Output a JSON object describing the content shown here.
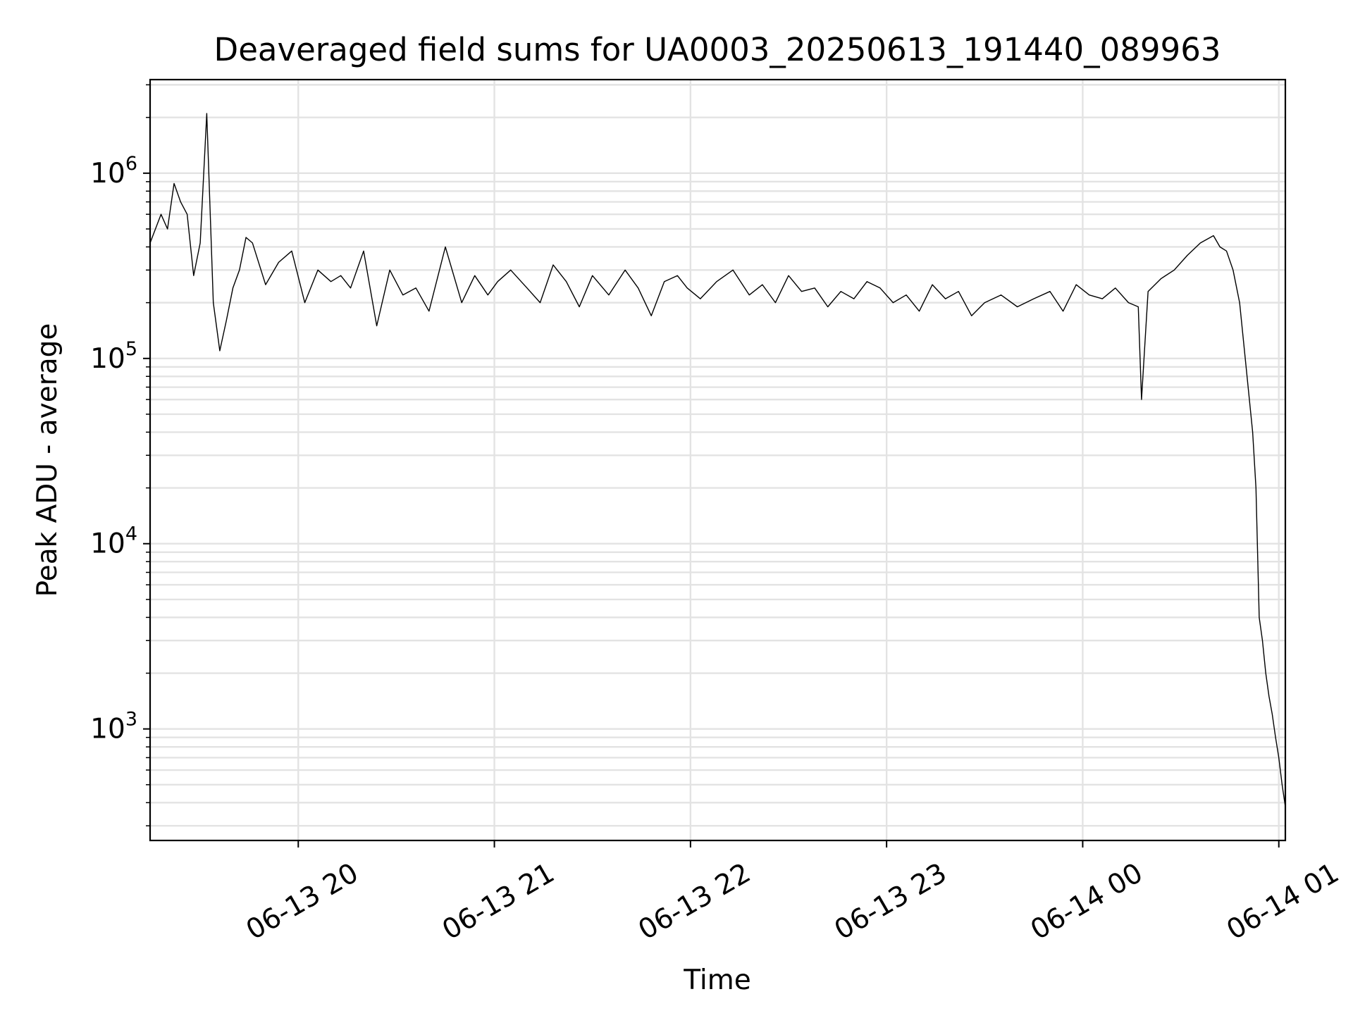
{
  "chart_data": {
    "type": "line",
    "title": "Deaveraged field sums for UA0003_20250613_191440_089963",
    "xlabel": "Time",
    "ylabel": "Peak ADU - average",
    "y_scale": "log",
    "ylim": [
      250,
      3200000
    ],
    "xlim": [
      "2025-06-13 19:14:40",
      "2025-06-14 01:02:00"
    ],
    "grid": "on (major and minor)",
    "line_color": "#000000",
    "x_ticks": [
      {
        "label": "06-13 20",
        "value": "2025-06-13 20:00"
      },
      {
        "label": "06-13 21",
        "value": "2025-06-13 21:00"
      },
      {
        "label": "06-13 22",
        "value": "2025-06-13 22:00"
      },
      {
        "label": "06-13 23",
        "value": "2025-06-13 23:00"
      },
      {
        "label": "06-14 00",
        "value": "2025-06-14 00:00"
      },
      {
        "label": "06-14 01",
        "value": "2025-06-14 01:00"
      }
    ],
    "y_ticks": [
      {
        "base": "10",
        "exp": "3",
        "value": 1000
      },
      {
        "base": "10",
        "exp": "4",
        "value": 10000
      },
      {
        "base": "10",
        "exp": "5",
        "value": 100000
      },
      {
        "base": "10",
        "exp": "6",
        "value": 1000000
      }
    ],
    "series": [
      {
        "x": [
          "2025-06-13 19:14:40",
          "2025-06-13 19:18",
          "2025-06-13 19:20",
          "2025-06-13 19:22",
          "2025-06-13 19:24",
          "2025-06-13 19:26",
          "2025-06-13 19:28",
          "2025-06-13 19:30",
          "2025-06-13 19:32",
          "2025-06-13 19:34",
          "2025-06-13 19:36",
          "2025-06-13 19:38",
          "2025-06-13 19:40",
          "2025-06-13 19:42",
          "2025-06-13 19:44",
          "2025-06-13 19:46",
          "2025-06-13 19:50",
          "2025-06-13 19:54",
          "2025-06-13 19:58",
          "2025-06-13 20:02",
          "2025-06-13 20:06",
          "2025-06-13 20:10",
          "2025-06-13 20:13",
          "2025-06-13 20:16",
          "2025-06-13 20:20",
          "2025-06-13 20:24",
          "2025-06-13 20:28",
          "2025-06-13 20:32",
          "2025-06-13 20:36",
          "2025-06-13 20:40",
          "2025-06-13 20:45",
          "2025-06-13 20:50",
          "2025-06-13 20:54",
          "2025-06-13 20:58",
          "2025-06-13 21:01",
          "2025-06-13 21:05",
          "2025-06-13 21:10",
          "2025-06-13 21:14",
          "2025-06-13 21:18",
          "2025-06-13 21:22",
          "2025-06-13 21:26",
          "2025-06-13 21:30",
          "2025-06-13 21:35",
          "2025-06-13 21:40",
          "2025-06-13 21:44",
          "2025-06-13 21:48",
          "2025-06-13 21:52",
          "2025-06-13 21:56",
          "2025-06-13 21:59",
          "2025-06-13 22:03",
          "2025-06-13 22:08",
          "2025-06-13 22:13",
          "2025-06-13 22:18",
          "2025-06-13 22:22",
          "2025-06-13 22:26",
          "2025-06-13 22:30",
          "2025-06-13 22:34",
          "2025-06-13 22:38",
          "2025-06-13 22:42",
          "2025-06-13 22:46",
          "2025-06-13 22:50",
          "2025-06-13 22:54",
          "2025-06-13 22:58",
          "2025-06-13 23:02",
          "2025-06-13 23:06",
          "2025-06-13 23:10",
          "2025-06-13 23:14",
          "2025-06-13 23:18",
          "2025-06-13 23:22",
          "2025-06-13 23:26",
          "2025-06-13 23:30",
          "2025-06-13 23:35",
          "2025-06-13 23:40",
          "2025-06-13 23:45",
          "2025-06-13 23:50",
          "2025-06-13 23:54",
          "2025-06-13 23:58",
          "2025-06-14 00:02",
          "2025-06-14 00:06",
          "2025-06-14 00:10",
          "2025-06-14 00:14",
          "2025-06-14 00:17",
          "2025-06-14 00:18",
          "2025-06-14 00:20",
          "2025-06-14 00:24",
          "2025-06-14 00:28",
          "2025-06-14 00:32",
          "2025-06-14 00:36",
          "2025-06-14 00:40",
          "2025-06-14 00:42",
          "2025-06-14 00:44",
          "2025-06-14 00:46",
          "2025-06-14 00:48",
          "2025-06-14 00:50",
          "2025-06-14 00:52",
          "2025-06-14 00:53",
          "2025-06-14 00:54",
          "2025-06-14 00:55",
          "2025-06-14 00:56",
          "2025-06-14 00:57",
          "2025-06-14 00:58",
          "2025-06-14 00:59",
          "2025-06-14 01:00",
          "2025-06-14 01:01",
          "2025-06-14 01:02"
        ],
        "y": [
          420000,
          600000,
          500000,
          880000,
          700000,
          600000,
          280000,
          420000,
          2100000,
          200000,
          110000,
          160000,
          240000,
          300000,
          450000,
          420000,
          250000,
          330000,
          380000,
          200000,
          300000,
          260000,
          280000,
          240000,
          380000,
          150000,
          300000,
          220000,
          240000,
          180000,
          400000,
          200000,
          280000,
          220000,
          260000,
          300000,
          240000,
          200000,
          320000,
          260000,
          190000,
          280000,
          220000,
          300000,
          240000,
          170000,
          260000,
          280000,
          240000,
          210000,
          260000,
          300000,
          220000,
          250000,
          200000,
          280000,
          230000,
          240000,
          190000,
          230000,
          210000,
          260000,
          240000,
          200000,
          220000,
          180000,
          250000,
          210000,
          230000,
          170000,
          200000,
          220000,
          190000,
          210000,
          230000,
          180000,
          250000,
          220000,
          210000,
          240000,
          200000,
          190000,
          60000,
          230000,
          270000,
          300000,
          360000,
          420000,
          460000,
          400000,
          380000,
          300000,
          200000,
          90000,
          40000,
          20000,
          4000,
          3000,
          2000,
          1500,
          1200,
          900,
          700,
          500,
          380
        ]
      }
    ]
  }
}
